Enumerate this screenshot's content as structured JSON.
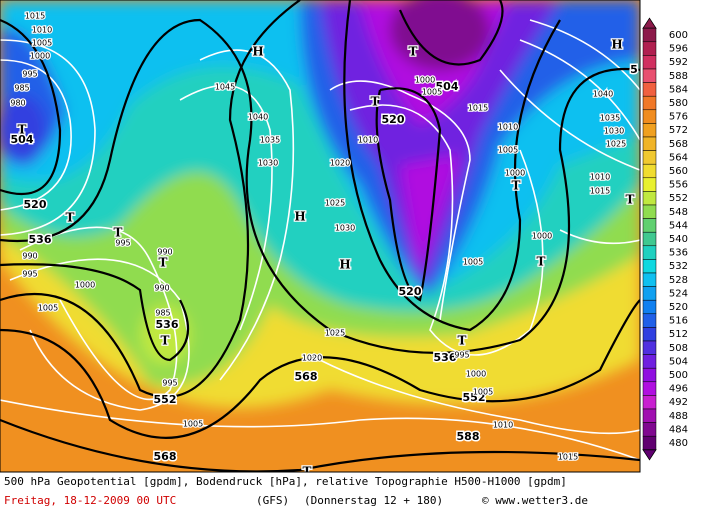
{
  "footer": {
    "title": "500 hPa Geopotential [gpdm], Bodendruck [hPa], relative Topographie H500-H1000 [gpdm]",
    "date": "Freitag, 18-12-2009  00 UTC",
    "model": "(GFS)",
    "run": "(Donnerstag 12 + 180)",
    "credit": "© www.wetter3.de"
  },
  "colorbar": {
    "labels": [
      600,
      596,
      592,
      588,
      584,
      580,
      576,
      572,
      568,
      564,
      560,
      556,
      552,
      548,
      544,
      540,
      536,
      532,
      528,
      524,
      520,
      516,
      512,
      508,
      504,
      500,
      496,
      492,
      488,
      484,
      480
    ],
    "colors": [
      "#8c1a4a",
      "#b02050",
      "#d03060",
      "#e85070",
      "#f06040",
      "#f07828",
      "#f08c20",
      "#f0a020",
      "#f0b428",
      "#f0c830",
      "#f0dc30",
      "#e8f030",
      "#c0e840",
      "#90dc50",
      "#60d070",
      "#40c890",
      "#20d0c0",
      "#10d8e0",
      "#10c0f0",
      "#10a0f0",
      "#1080f0",
      "#2060e8",
      "#3040e0",
      "#5030e0",
      "#7020e0",
      "#9010e0",
      "#b010e0",
      "#c820d0",
      "#a010b0",
      "#800890",
      "#600070"
    ]
  },
  "map": {
    "geopotential_labels": [
      "504",
      "520",
      "536",
      "536",
      "552",
      "568",
      "568",
      "520",
      "504",
      "520",
      "536",
      "552",
      "588",
      "5"
    ],
    "pressure_labels": [
      "1015",
      "1010",
      "1005",
      "1000",
      "995",
      "985",
      "980",
      "1045",
      "1040",
      "1035",
      "1030",
      "1020",
      "1025",
      "1030",
      "1025",
      "1020",
      "1010",
      "1000",
      "1005",
      "1015",
      "1010",
      "1005",
      "1000",
      "1000",
      "1005",
      "995",
      "990",
      "990",
      "985",
      "995",
      "1005",
      "990",
      "995",
      "1000",
      "1005",
      "1040",
      "1035",
      "1030",
      "1025",
      "1015",
      "1010",
      "1010",
      "1015",
      "1000",
      "1005",
      "995"
    ],
    "highs": [
      "H",
      "H",
      "H",
      "H"
    ],
    "lows": [
      "T",
      "T",
      "T",
      "T",
      "T",
      "T",
      "T",
      "T",
      "T",
      "T",
      "T",
      "T"
    ]
  }
}
